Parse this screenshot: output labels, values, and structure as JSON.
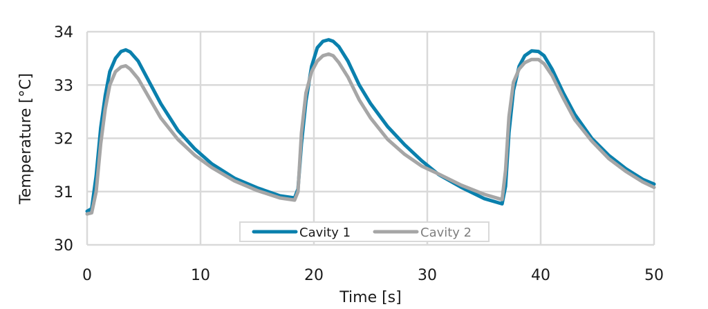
{
  "chart_data": {
    "type": "line",
    "title": "",
    "xlabel": "Time   [s]",
    "ylabel": "Temperature   [°C]",
    "xlim": [
      0,
      50
    ],
    "ylim": [
      30,
      34
    ],
    "xticks": [
      0,
      10,
      20,
      30,
      40,
      50
    ],
    "yticks": [
      30,
      31,
      32,
      33,
      34
    ],
    "grid": true,
    "legend_position": "bottom-center",
    "series": [
      {
        "name": "Cavity 1",
        "color": "#0a80ad",
        "x": [
          0,
          0.4,
          0.8,
          1.2,
          1.6,
          2.0,
          2.5,
          3.0,
          3.4,
          3.8,
          4.5,
          5.5,
          6.5,
          8,
          9.5,
          11,
          13,
          15,
          17,
          18.3,
          18.6,
          18.9,
          19.3,
          19.8,
          20.3,
          20.8,
          21.3,
          21.7,
          22.2,
          23,
          24,
          25,
          26.5,
          28,
          29.5,
          31,
          33,
          35,
          36.6,
          36.9,
          37.2,
          37.6,
          38.1,
          38.6,
          39.2,
          39.8,
          40.3,
          41,
          42,
          43,
          44.5,
          46,
          47.5,
          49,
          50
        ],
        "y": [
          30.63,
          30.68,
          31.3,
          32.2,
          32.8,
          33.25,
          33.5,
          33.63,
          33.66,
          33.62,
          33.45,
          33.05,
          32.65,
          32.15,
          31.8,
          31.52,
          31.25,
          31.07,
          30.92,
          30.88,
          31.05,
          31.9,
          32.7,
          33.35,
          33.7,
          33.82,
          33.85,
          33.82,
          33.72,
          33.45,
          33.0,
          32.65,
          32.22,
          31.88,
          31.58,
          31.32,
          31.08,
          30.87,
          30.77,
          31.1,
          32.1,
          32.9,
          33.35,
          33.55,
          33.64,
          33.63,
          33.55,
          33.3,
          32.85,
          32.45,
          32.0,
          31.68,
          31.43,
          31.23,
          31.14
        ]
      },
      {
        "name": "Cavity 2",
        "color": "#a6a6a6",
        "x": [
          0,
          0.4,
          0.8,
          1.2,
          1.6,
          2.0,
          2.5,
          3.0,
          3.4,
          3.8,
          4.5,
          5.5,
          6.5,
          8,
          9.5,
          11,
          13,
          15,
          17,
          18.3,
          18.6,
          18.9,
          19.3,
          19.8,
          20.3,
          20.8,
          21.3,
          21.7,
          22.2,
          23,
          24,
          25,
          26.5,
          28,
          29.5,
          31,
          33,
          35,
          36.6,
          36.9,
          37.2,
          37.6,
          38.1,
          38.6,
          39.2,
          39.8,
          40.3,
          41,
          42,
          43,
          44.5,
          46,
          47.5,
          49,
          50
        ],
        "y": [
          30.58,
          30.6,
          31.0,
          31.9,
          32.55,
          33.0,
          33.25,
          33.34,
          33.36,
          33.3,
          33.12,
          32.75,
          32.38,
          31.98,
          31.68,
          31.45,
          31.2,
          31.02,
          30.88,
          30.84,
          31.0,
          32.1,
          32.85,
          33.25,
          33.45,
          33.55,
          33.58,
          33.55,
          33.42,
          33.15,
          32.72,
          32.38,
          31.98,
          31.7,
          31.48,
          31.33,
          31.12,
          30.95,
          30.85,
          31.4,
          32.4,
          33.05,
          33.3,
          33.42,
          33.48,
          33.48,
          33.4,
          33.18,
          32.75,
          32.35,
          31.95,
          31.62,
          31.38,
          31.18,
          31.08
        ]
      }
    ]
  }
}
